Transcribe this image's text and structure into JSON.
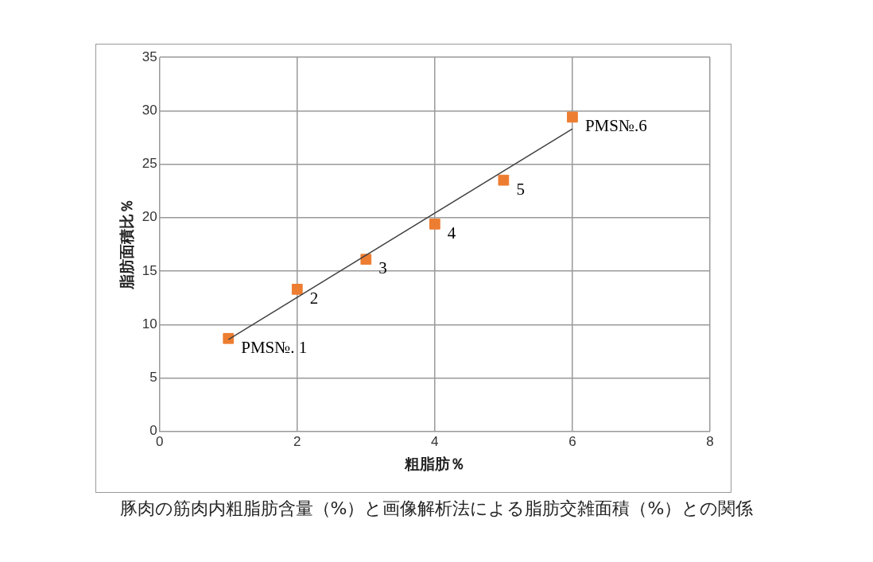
{
  "chart_data": {
    "type": "scatter",
    "xlabel": "粗脂肪％",
    "ylabel": "脂肪面積比％",
    "x": [
      1,
      2,
      3,
      4,
      5,
      6
    ],
    "series": [
      {
        "color": "#ed7d31",
        "values": [
          8.7,
          13.3,
          16.1,
          19.4,
          23.5,
          29.4
        ]
      },
      {
        "type": "line",
        "color": "#404040",
        "x": [
          1,
          6
        ],
        "values": [
          8.6,
          28.3
        ],
        "marker": "none"
      }
    ],
    "xlim": [
      0,
      8
    ],
    "xticks": [
      0,
      2,
      4,
      6,
      8
    ],
    "ylim": [
      0,
      35
    ],
    "yticks": [
      0,
      5,
      10,
      15,
      20,
      25,
      30,
      35
    ],
    "grid": true,
    "marker": "square",
    "legend": false,
    "annotations": [
      {
        "text": "PMS№. 1",
        "x": 1,
        "y": 8.7
      },
      {
        "text": "2",
        "x": 2,
        "y": 13.3
      },
      {
        "text": "3",
        "x": 3,
        "y": 16.1
      },
      {
        "text": "4",
        "x": 4,
        "y": 19.4
      },
      {
        "text": "5",
        "x": 5,
        "y": 23.5
      },
      {
        "text": "PMS№.6",
        "x": 6,
        "y": 29.4
      },
      "豚肉の筋肉内粗脂肪含量（%）と画像解析法による脂肪交雑面積（%）との関係"
    ]
  }
}
